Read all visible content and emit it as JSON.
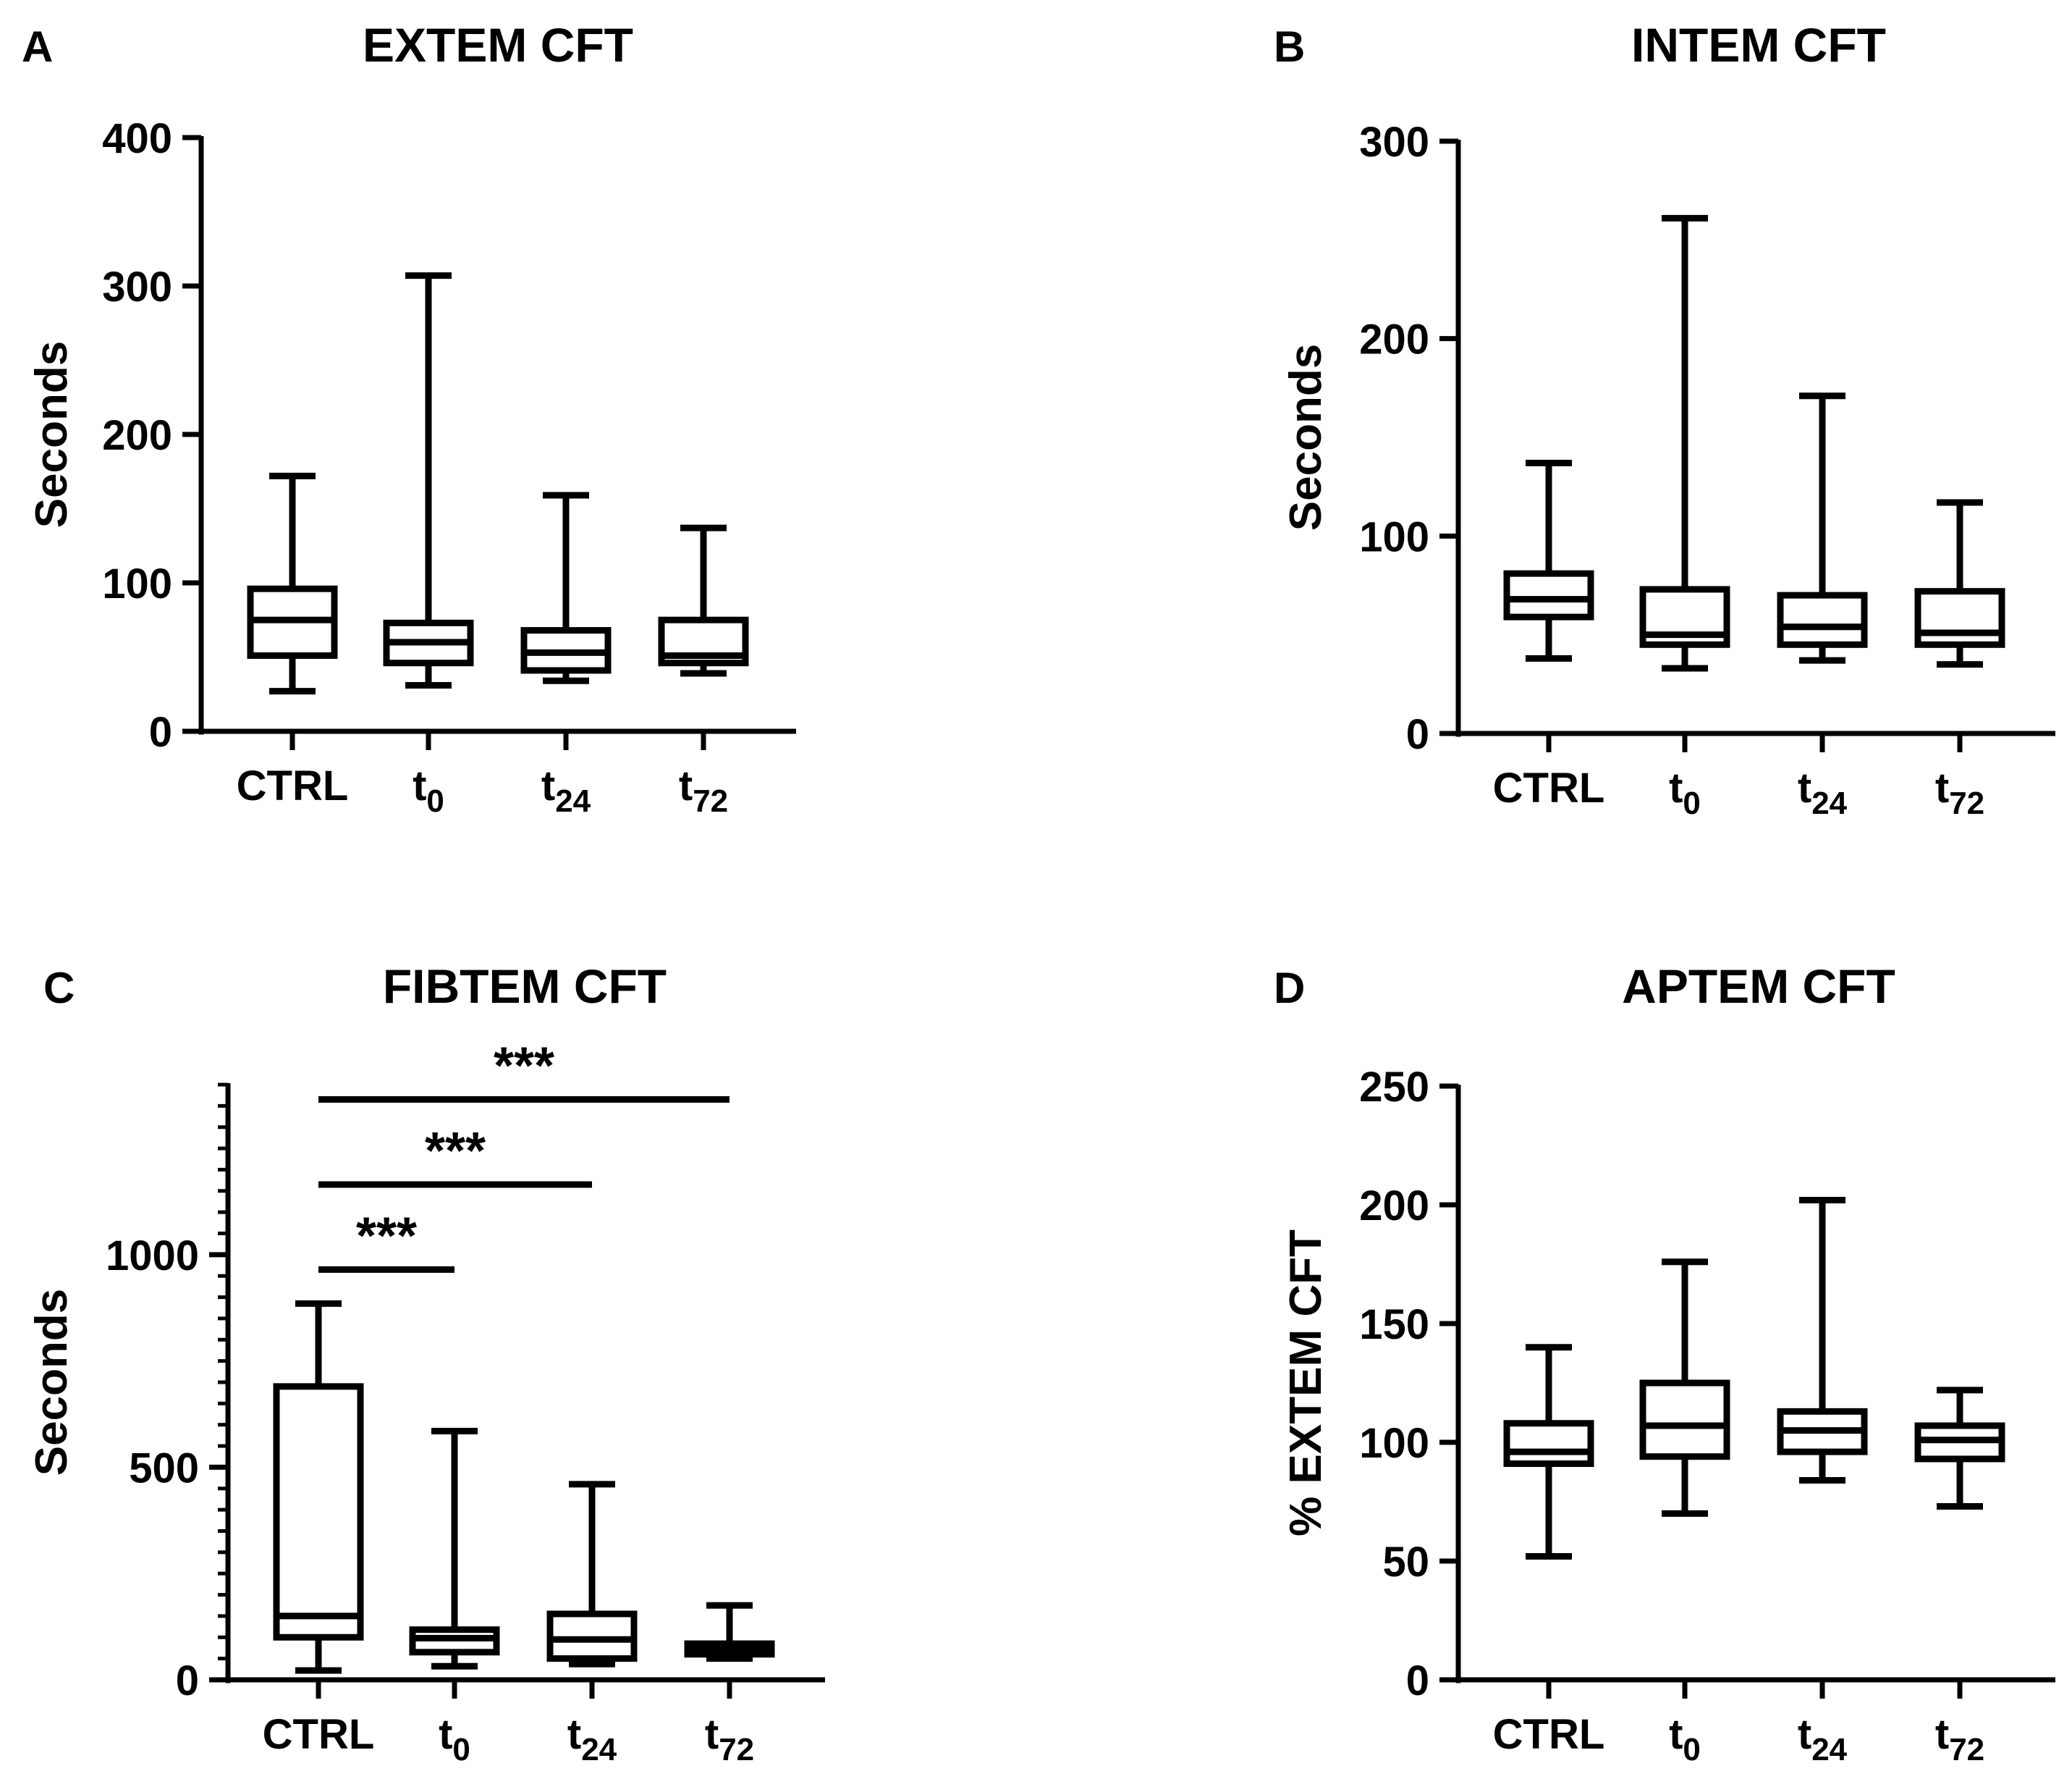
{
  "chart_data": [
    {
      "panel_label": "A",
      "type": "box",
      "title": "EXTEM CFT",
      "xlabel": "",
      "ylabel": "Seconds",
      "ylim": [
        0,
        400
      ],
      "yticks": [
        "0",
        "100",
        "200",
        "300",
        "400"
      ],
      "minor_ticks": false,
      "categories": [
        {
          "base": "CTRL",
          "sub": ""
        },
        {
          "base": "t",
          "sub": "0"
        },
        {
          "base": "t",
          "sub": "24"
        },
        {
          "base": "t",
          "sub": "72"
        }
      ],
      "boxes": [
        {
          "min": 27,
          "q1": 51,
          "median": 75,
          "q3": 96,
          "max": 172
        },
        {
          "min": 31,
          "q1": 46,
          "median": 60,
          "q3": 73,
          "max": 307
        },
        {
          "min": 34,
          "q1": 41,
          "median": 53,
          "q3": 68,
          "max": 159
        },
        {
          "min": 39,
          "q1": 46,
          "median": 51,
          "q3": 75,
          "max": 137
        }
      ],
      "significance": []
    },
    {
      "panel_label": "B",
      "type": "box",
      "title": "INTEM CFT",
      "xlabel": "",
      "ylabel": "Seconds",
      "ylim": [
        0,
        300
      ],
      "yticks": [
        "0",
        "100",
        "200",
        "300"
      ],
      "minor_ticks": false,
      "categories": [
        {
          "base": "CTRL",
          "sub": ""
        },
        {
          "base": "t",
          "sub": "0"
        },
        {
          "base": "t",
          "sub": "24"
        },
        {
          "base": "t",
          "sub": "72"
        }
      ],
      "boxes": [
        {
          "min": 38,
          "q1": 59,
          "median": 68,
          "q3": 81,
          "max": 137
        },
        {
          "min": 33,
          "q1": 45,
          "median": 50,
          "q3": 73,
          "max": 261
        },
        {
          "min": 37,
          "q1": 45,
          "median": 54,
          "q3": 70,
          "max": 171
        },
        {
          "min": 35,
          "q1": 45,
          "median": 51,
          "q3": 72,
          "max": 117
        }
      ],
      "significance": []
    },
    {
      "panel_label": "C",
      "type": "box",
      "title": "FIBTEM CFT",
      "xlabel": "",
      "ylabel": "Seconds",
      "ylim": [
        0,
        1400
      ],
      "yticks": [
        "0",
        "500",
        "1000"
      ],
      "minor_ticks": true,
      "categories": [
        {
          "base": "CTRL",
          "sub": ""
        },
        {
          "base": "t",
          "sub": "0"
        },
        {
          "base": "t",
          "sub": "24"
        },
        {
          "base": "t",
          "sub": "72"
        }
      ],
      "boxes": [
        {
          "min": 22,
          "q1": 100,
          "median": 150,
          "q3": 690,
          "max": 885
        },
        {
          "min": 32,
          "q1": 65,
          "median": 98,
          "q3": 118,
          "max": 585
        },
        {
          "min": 37,
          "q1": 50,
          "median": 95,
          "q3": 155,
          "max": 460
        },
        {
          "min": 50,
          "q1": 60,
          "median": 75,
          "q3": 85,
          "max": 175
        }
      ],
      "significance": [
        {
          "from": 0,
          "to": 1,
          "y": 965,
          "label": "***"
        },
        {
          "from": 0,
          "to": 2,
          "y": 1165,
          "label": "***"
        },
        {
          "from": 0,
          "to": 3,
          "y": 1365,
          "label": "***"
        }
      ]
    },
    {
      "panel_label": "D",
      "type": "box",
      "title": "APTEM CFT",
      "xlabel": "",
      "ylabel": "% EXTEM CFT",
      "ylim": [
        0,
        250
      ],
      "yticks": [
        "0",
        "50",
        "100",
        "150",
        "200",
        "250"
      ],
      "minor_ticks": false,
      "categories": [
        {
          "base": "CTRL",
          "sub": ""
        },
        {
          "base": "t",
          "sub": "0"
        },
        {
          "base": "t",
          "sub": "24"
        },
        {
          "base": "t",
          "sub": "72"
        }
      ],
      "boxes": [
        {
          "min": 52,
          "q1": 91,
          "median": 96,
          "q3": 108,
          "max": 140
        },
        {
          "min": 70,
          "q1": 94,
          "median": 107,
          "q3": 125,
          "max": 176
        },
        {
          "min": 84,
          "q1": 96,
          "median": 105,
          "q3": 113,
          "max": 202
        },
        {
          "min": 73,
          "q1": 93,
          "median": 101,
          "q3": 107,
          "max": 122
        }
      ],
      "significance": []
    }
  ]
}
